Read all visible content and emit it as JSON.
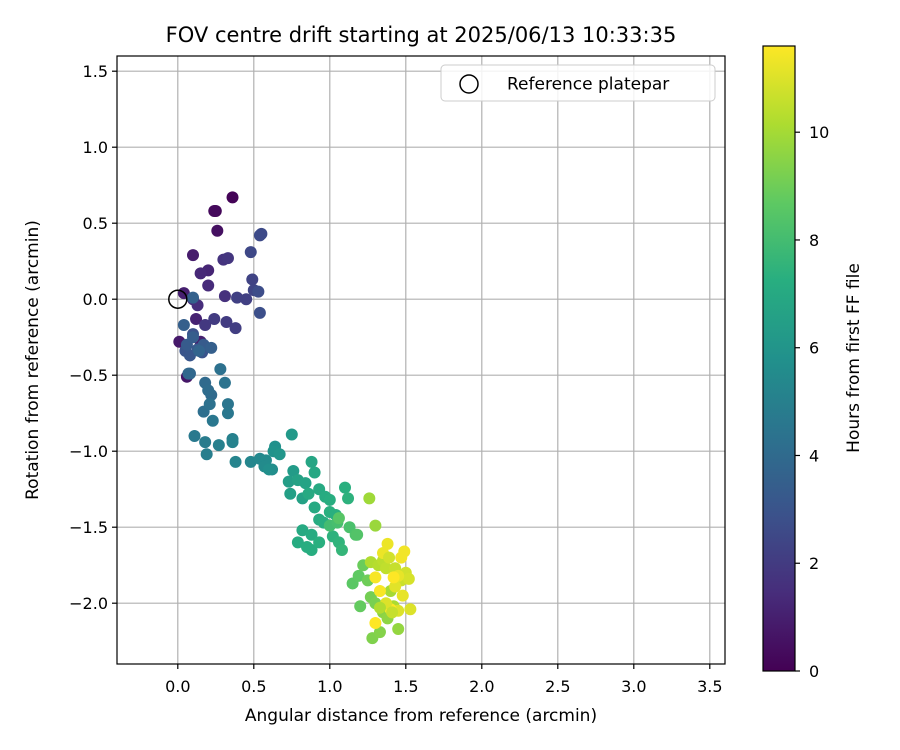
{
  "chart_data": {
    "type": "scatter",
    "title": "FOV centre drift starting at 2025/06/13 10:33:35",
    "xlabel": "Angular distance from reference (arcmin)",
    "ylabel": "Rotation from reference (arcmin)",
    "xlim": [
      -0.4,
      3.6
    ],
    "ylim": [
      -2.4,
      1.6
    ],
    "xticks": [
      0.0,
      0.5,
      1.0,
      1.5,
      2.0,
      2.5,
      3.0,
      3.5
    ],
    "xtick_labels": [
      "0.0",
      "0.5",
      "1.0",
      "1.5",
      "2.0",
      "2.5",
      "3.0",
      "3.5"
    ],
    "yticks": [
      -2.0,
      -1.5,
      -1.0,
      -0.5,
      0.0,
      0.5,
      1.0,
      1.5
    ],
    "ytick_labels": [
      "−2.0",
      "−1.5",
      "−1.0",
      "−0.5",
      "0.0",
      "0.5",
      "1.0",
      "1.5"
    ],
    "grid": true,
    "legend": {
      "position": "top-right",
      "label": "Reference platepar"
    },
    "reference_point": {
      "x": 0.0,
      "y": 0.0
    },
    "colorbar": {
      "label": "Hours from first FF file",
      "colormap": "viridis",
      "range": [
        0,
        11.6
      ],
      "ticks": [
        0,
        2,
        4,
        6,
        8,
        10
      ],
      "tick_labels": [
        "0",
        "2",
        "4",
        "6",
        "8",
        "10"
      ]
    },
    "points": [
      {
        "x": 0.36,
        "y": 0.67,
        "t": 0.1
      },
      {
        "x": 0.25,
        "y": 0.58,
        "t": 0.2
      },
      {
        "x": 0.24,
        "y": 0.58,
        "t": 0.3
      },
      {
        "x": 0.26,
        "y": 0.45,
        "t": 0.5
      },
      {
        "x": 0.06,
        "y": -0.51,
        "t": 0.7
      },
      {
        "x": 0.01,
        "y": -0.28,
        "t": 0.8
      },
      {
        "x": 0.1,
        "y": 0.29,
        "t": 0.9
      },
      {
        "x": 0.15,
        "y": -0.28,
        "t": 1.0
      },
      {
        "x": 0.04,
        "y": 0.04,
        "t": 1.0
      },
      {
        "x": 0.12,
        "y": -0.13,
        "t": 1.1
      },
      {
        "x": 0.2,
        "y": 0.19,
        "t": 1.2
      },
      {
        "x": 0.15,
        "y": 0.17,
        "t": 1.3
      },
      {
        "x": 0.2,
        "y": 0.09,
        "t": 1.4
      },
      {
        "x": 0.1,
        "y": 0.0,
        "t": 1.5
      },
      {
        "x": 0.13,
        "y": -0.04,
        "t": 1.5
      },
      {
        "x": 0.31,
        "y": 0.02,
        "t": 1.6
      },
      {
        "x": 0.3,
        "y": 0.26,
        "t": 1.7
      },
      {
        "x": 0.33,
        "y": 0.27,
        "t": 1.8
      },
      {
        "x": 0.18,
        "y": -0.17,
        "t": 1.9
      },
      {
        "x": 0.24,
        "y": -0.13,
        "t": 2.0
      },
      {
        "x": 0.32,
        "y": -0.15,
        "t": 2.0
      },
      {
        "x": 0.38,
        "y": -0.19,
        "t": 2.1
      },
      {
        "x": 0.45,
        "y": 0.0,
        "t": 2.2
      },
      {
        "x": 0.39,
        "y": 0.01,
        "t": 2.2
      },
      {
        "x": 0.49,
        "y": 0.13,
        "t": 2.3
      },
      {
        "x": 0.5,
        "y": 0.06,
        "t": 2.4
      },
      {
        "x": 0.48,
        "y": 0.31,
        "t": 2.5
      },
      {
        "x": 0.54,
        "y": 0.42,
        "t": 2.6
      },
      {
        "x": 0.55,
        "y": 0.43,
        "t": 2.6
      },
      {
        "x": 0.53,
        "y": 0.05,
        "t": 2.7
      },
      {
        "x": 0.54,
        "y": -0.09,
        "t": 2.8
      },
      {
        "x": 0.1,
        "y": -0.23,
        "t": 2.9
      },
      {
        "x": 0.16,
        "y": -0.35,
        "t": 3.0
      },
      {
        "x": 0.05,
        "y": -0.34,
        "t": 3.0
      },
      {
        "x": 0.08,
        "y": -0.37,
        "t": 3.1
      },
      {
        "x": 0.13,
        "y": -0.33,
        "t": 3.2
      },
      {
        "x": 0.17,
        "y": -0.3,
        "t": 3.3
      },
      {
        "x": 0.06,
        "y": -0.3,
        "t": 3.3
      },
      {
        "x": 0.1,
        "y": -0.25,
        "t": 3.4
      },
      {
        "x": 0.04,
        "y": -0.17,
        "t": 3.5
      },
      {
        "x": 0.22,
        "y": -0.32,
        "t": 3.5
      },
      {
        "x": 0.1,
        "y": 0.01,
        "t": 3.6
      },
      {
        "x": 0.14,
        "y": -0.34,
        "t": 3.7
      },
      {
        "x": 0.08,
        "y": -0.49,
        "t": 3.8
      },
      {
        "x": 0.07,
        "y": -0.49,
        "t": 3.9
      },
      {
        "x": 0.18,
        "y": -0.55,
        "t": 4.0
      },
      {
        "x": 0.22,
        "y": -0.63,
        "t": 4.0
      },
      {
        "x": 0.2,
        "y": -0.6,
        "t": 4.1
      },
      {
        "x": 0.17,
        "y": -0.74,
        "t": 4.2
      },
      {
        "x": 0.21,
        "y": -0.69,
        "t": 4.3
      },
      {
        "x": 0.28,
        "y": -0.46,
        "t": 4.3
      },
      {
        "x": 0.31,
        "y": -0.55,
        "t": 4.4
      },
      {
        "x": 0.33,
        "y": -0.69,
        "t": 4.5
      },
      {
        "x": 0.33,
        "y": -0.75,
        "t": 4.6
      },
      {
        "x": 0.23,
        "y": -0.8,
        "t": 4.6
      },
      {
        "x": 0.11,
        "y": -0.9,
        "t": 4.7
      },
      {
        "x": 0.18,
        "y": -0.94,
        "t": 4.8
      },
      {
        "x": 0.19,
        "y": -1.02,
        "t": 4.9
      },
      {
        "x": 0.27,
        "y": -0.96,
        "t": 5.0
      },
      {
        "x": 0.36,
        "y": -0.92,
        "t": 5.0
      },
      {
        "x": 0.36,
        "y": -0.94,
        "t": 5.1
      },
      {
        "x": 0.38,
        "y": -1.07,
        "t": 5.2
      },
      {
        "x": 0.48,
        "y": -1.07,
        "t": 5.3
      },
      {
        "x": 0.54,
        "y": -1.05,
        "t": 5.4
      },
      {
        "x": 0.58,
        "y": -1.06,
        "t": 5.5
      },
      {
        "x": 0.57,
        "y": -1.1,
        "t": 5.5
      },
      {
        "x": 0.62,
        "y": -1.12,
        "t": 5.6
      },
      {
        "x": 0.6,
        "y": -1.12,
        "t": 5.7
      },
      {
        "x": 0.64,
        "y": -0.97,
        "t": 5.8
      },
      {
        "x": 0.63,
        "y": -1.0,
        "t": 5.9
      },
      {
        "x": 0.67,
        "y": -1.02,
        "t": 6.0
      },
      {
        "x": 0.75,
        "y": -0.89,
        "t": 6.2
      },
      {
        "x": 0.76,
        "y": -1.13,
        "t": 6.3
      },
      {
        "x": 0.73,
        "y": -1.2,
        "t": 6.4
      },
      {
        "x": 0.74,
        "y": -1.28,
        "t": 6.5
      },
      {
        "x": 0.82,
        "y": -1.31,
        "t": 6.6
      },
      {
        "x": 0.79,
        "y": -1.19,
        "t": 6.6
      },
      {
        "x": 0.84,
        "y": -1.21,
        "t": 6.7
      },
      {
        "x": 0.88,
        "y": -1.07,
        "t": 6.8
      },
      {
        "x": 0.9,
        "y": -1.14,
        "t": 6.9
      },
      {
        "x": 0.86,
        "y": -1.28,
        "t": 7.0
      },
      {
        "x": 0.93,
        "y": -1.25,
        "t": 7.0
      },
      {
        "x": 0.97,
        "y": -1.3,
        "t": 7.1
      },
      {
        "x": 1.0,
        "y": -1.32,
        "t": 7.2
      },
      {
        "x": 1.04,
        "y": -1.42,
        "t": 7.3
      },
      {
        "x": 1.1,
        "y": -1.24,
        "t": 7.3
      },
      {
        "x": 1.12,
        "y": -1.31,
        "t": 7.4
      },
      {
        "x": 0.9,
        "y": -1.37,
        "t": 7.0
      },
      {
        "x": 0.93,
        "y": -1.45,
        "t": 7.1
      },
      {
        "x": 0.96,
        "y": -1.47,
        "t": 7.2
      },
      {
        "x": 1.0,
        "y": -1.4,
        "t": 7.3
      },
      {
        "x": 0.82,
        "y": -1.52,
        "t": 7.0
      },
      {
        "x": 0.88,
        "y": -1.55,
        "t": 7.1
      },
      {
        "x": 0.79,
        "y": -1.6,
        "t": 7.1
      },
      {
        "x": 0.85,
        "y": -1.63,
        "t": 7.2
      },
      {
        "x": 0.88,
        "y": -1.65,
        "t": 7.2
      },
      {
        "x": 0.93,
        "y": -1.6,
        "t": 7.3
      },
      {
        "x": 1.02,
        "y": -1.56,
        "t": 7.4
      },
      {
        "x": 1.06,
        "y": -1.6,
        "t": 7.5
      },
      {
        "x": 1.08,
        "y": -1.65,
        "t": 7.6
      },
      {
        "x": 1.0,
        "y": -1.49,
        "t": 8.0
      },
      {
        "x": 1.05,
        "y": -1.47,
        "t": 8.1
      },
      {
        "x": 1.13,
        "y": -1.5,
        "t": 8.2
      },
      {
        "x": 1.17,
        "y": -1.55,
        "t": 8.3
      },
      {
        "x": 1.18,
        "y": -1.55,
        "t": 8.4
      },
      {
        "x": 1.06,
        "y": -1.44,
        "t": 8.5
      },
      {
        "x": 1.15,
        "y": -1.87,
        "t": 8.6
      },
      {
        "x": 1.19,
        "y": -1.82,
        "t": 8.7
      },
      {
        "x": 1.2,
        "y": -2.02,
        "t": 8.8
      },
      {
        "x": 1.22,
        "y": -1.75,
        "t": 8.9
      },
      {
        "x": 1.25,
        "y": -1.85,
        "t": 9.0
      },
      {
        "x": 1.27,
        "y": -1.96,
        "t": 9.1
      },
      {
        "x": 1.3,
        "y": -2.0,
        "t": 9.2
      },
      {
        "x": 1.28,
        "y": -2.23,
        "t": 9.3
      },
      {
        "x": 1.33,
        "y": -2.19,
        "t": 9.4
      },
      {
        "x": 1.35,
        "y": -2.06,
        "t": 9.5
      },
      {
        "x": 1.38,
        "y": -2.1,
        "t": 9.6
      },
      {
        "x": 1.45,
        "y": -2.17,
        "t": 9.7
      },
      {
        "x": 1.3,
        "y": -1.49,
        "t": 9.8
      },
      {
        "x": 1.26,
        "y": -1.31,
        "t": 9.9
      },
      {
        "x": 1.4,
        "y": -1.92,
        "t": 10.0
      },
      {
        "x": 1.42,
        "y": -2.02,
        "t": 10.1
      },
      {
        "x": 1.27,
        "y": -1.73,
        "t": 10.2
      },
      {
        "x": 1.32,
        "y": -1.75,
        "t": 10.3
      },
      {
        "x": 1.35,
        "y": -1.72,
        "t": 10.4
      },
      {
        "x": 1.37,
        "y": -1.77,
        "t": 10.5
      },
      {
        "x": 1.43,
        "y": -1.77,
        "t": 10.6
      },
      {
        "x": 1.47,
        "y": -1.85,
        "t": 10.7
      },
      {
        "x": 1.5,
        "y": -1.8,
        "t": 10.8
      },
      {
        "x": 1.52,
        "y": -1.84,
        "t": 10.9
      },
      {
        "x": 1.53,
        "y": -2.04,
        "t": 11.0
      },
      {
        "x": 1.45,
        "y": -2.05,
        "t": 11.0
      },
      {
        "x": 1.43,
        "y": -1.89,
        "t": 11.1
      },
      {
        "x": 1.48,
        "y": -1.95,
        "t": 11.2
      },
      {
        "x": 1.45,
        "y": -1.82,
        "t": 11.2
      },
      {
        "x": 1.38,
        "y": -1.61,
        "t": 11.3
      },
      {
        "x": 1.35,
        "y": -1.67,
        "t": 11.3
      },
      {
        "x": 1.49,
        "y": -1.66,
        "t": 11.4
      },
      {
        "x": 1.47,
        "y": -1.7,
        "t": 11.4
      },
      {
        "x": 1.3,
        "y": -1.83,
        "t": 11.5
      },
      {
        "x": 1.33,
        "y": -1.92,
        "t": 11.5
      },
      {
        "x": 1.3,
        "y": -2.13,
        "t": 11.6
      },
      {
        "x": 1.4,
        "y": -2.04,
        "t": 11.6
      },
      {
        "x": 1.42,
        "y": -1.83,
        "t": 11.6
      },
      {
        "x": 1.37,
        "y": -2.0,
        "t": 11.0
      },
      {
        "x": 1.41,
        "y": -2.06,
        "t": 10.6
      },
      {
        "x": 1.33,
        "y": -2.03,
        "t": 10.2
      },
      {
        "x": 1.39,
        "y": -1.7,
        "t": 10.8
      }
    ]
  }
}
